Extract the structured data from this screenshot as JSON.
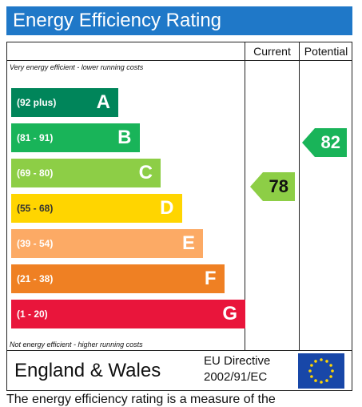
{
  "title": "Energy Efficiency Rating",
  "columns": {
    "current": "Current",
    "potential": "Potential"
  },
  "top_note": "Very energy efficient - lower running costs",
  "bottom_note": "Not energy efficient - higher running costs",
  "chart_data": {
    "type": "bar",
    "categories": [
      "A",
      "B",
      "C",
      "D",
      "E",
      "F",
      "G"
    ],
    "ranges": [
      "(92 plus)",
      "(81 - 91)",
      "(69 - 80)",
      "(55 - 68)",
      "(39 - 54)",
      "(21 - 38)",
      "(1 - 20)"
    ],
    "colors": [
      "#00855a",
      "#19b459",
      "#8dce46",
      "#ffd500",
      "#fcaa65",
      "#ef8023",
      "#e9153b"
    ],
    "current": {
      "value": 78,
      "band": "C",
      "color": "#8dce46"
    },
    "potential": {
      "value": 82,
      "band": "B",
      "color": "#19b459"
    }
  },
  "footer": {
    "region": "England & Wales",
    "directive_line1": "EU Directive",
    "directive_line2": "2002/91/EC"
  },
  "bottom_text": "The energy efficiency rating is a measure of the"
}
